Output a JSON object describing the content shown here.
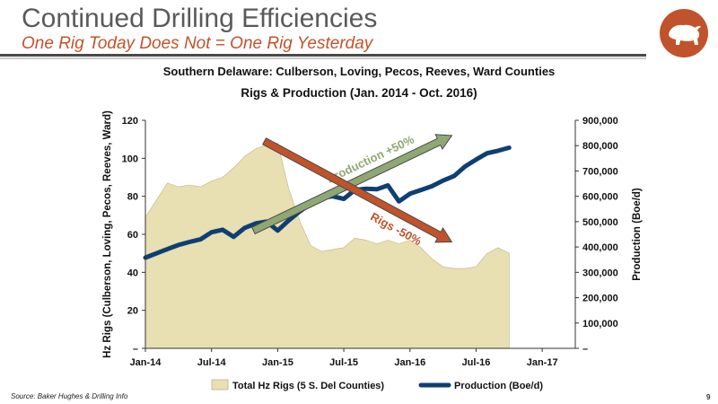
{
  "header": {
    "title": "Continued Drilling Efficiencies",
    "subtitle": "One Rig Today Does Not = One Rig Yesterday",
    "logo_icon": "bison-icon"
  },
  "chart_data": {
    "type": "area",
    "title": "Southern Delaware: Culberson, Loving, Pecos, Reeves, Ward Counties",
    "subtitle": "Rigs & Production (Jan. 2014 -  Oct. 2016)",
    "xlabel": "",
    "ylabel": "Hz Rigs (Culberson, Loving, Pecos, Reeves, Ward)",
    "y2label": "Production (Boe/d)",
    "x_ticks": [
      "Jan-14",
      "Jul-14",
      "Jan-15",
      "Jul-15",
      "Jan-16",
      "Jul-16",
      "Jan-17"
    ],
    "xlim": [
      0,
      39
    ],
    "ylim": [
      0,
      120
    ],
    "y_ticks": [
      "–",
      "20",
      "40",
      "60",
      "80",
      "100",
      "120"
    ],
    "y2lim": [
      0,
      900000
    ],
    "y2_ticks": [
      "–",
      "100,000",
      "200,000",
      "300,000",
      "400,000",
      "500,000",
      "600,000",
      "700,000",
      "800,000",
      "900,000"
    ],
    "grid": false,
    "legend_position": "bottom",
    "series": [
      {
        "name": "Total Hz Rigs (5 S. Del Counties)",
        "type": "area",
        "axis": "left",
        "color": "#e8dfb2",
        "values": [
          69,
          78,
          87,
          85,
          86,
          85,
          88,
          90,
          95,
          101,
          105,
          107,
          108,
          84,
          67,
          54,
          51,
          52,
          53,
          58,
          57,
          55,
          57,
          55,
          57,
          53,
          47,
          43,
          42,
          42,
          43,
          50,
          53,
          50
        ]
      },
      {
        "name": "Production (Boe/d)",
        "type": "line",
        "axis": "right",
        "color": "#0e3f73",
        "values": [
          358000,
          375000,
          392000,
          408000,
          420000,
          430000,
          458000,
          468000,
          440000,
          475000,
          493000,
          500000,
          465000,
          505000,
          540000,
          570000,
          595000,
          600000,
          590000,
          625000,
          630000,
          628000,
          643000,
          580000,
          610000,
          625000,
          640000,
          662000,
          680000,
          718000,
          745000,
          770000,
          780000,
          792000
        ]
      }
    ],
    "annotations": [
      {
        "label": "Production +50%",
        "color": "#8fa873",
        "start": [
          9.8,
          62
        ],
        "end": [
          27.8,
          112
        ]
      },
      {
        "label": "Rigs -50%",
        "color": "#c0532b",
        "start": [
          10.8,
          109
        ],
        "end": [
          27.8,
          56
        ]
      }
    ]
  },
  "footer": {
    "source": "Source: Baker Hughes & Drilling Info",
    "page_number": "9"
  }
}
